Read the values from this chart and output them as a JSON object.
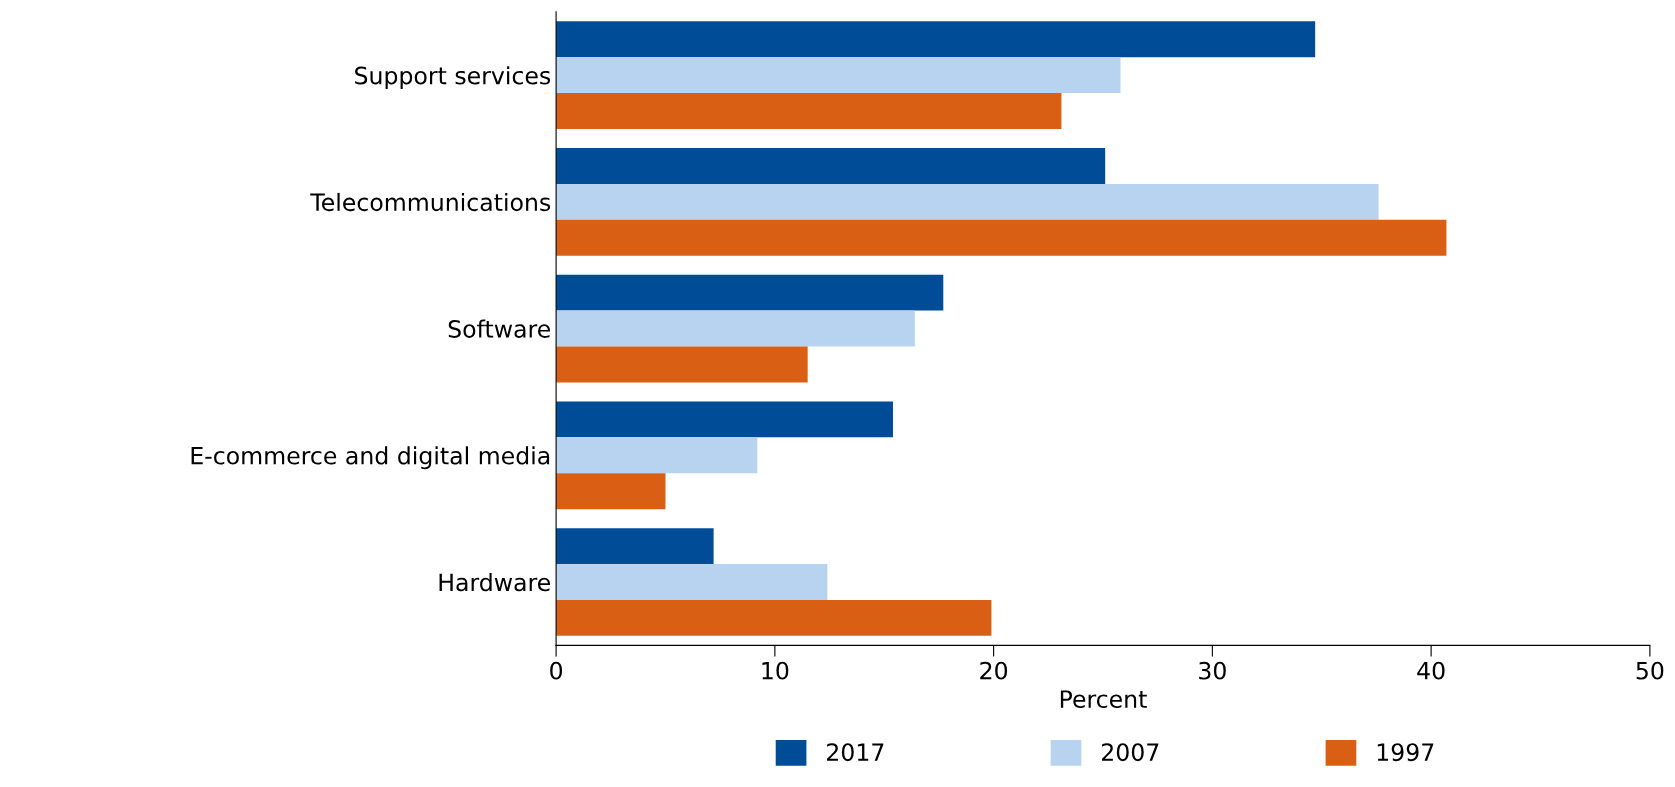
{
  "chart_data": {
    "type": "bar",
    "orientation": "horizontal",
    "xlabel": "Percent",
    "categories": [
      "Support services",
      "Telecommunications",
      "Software",
      "E-commerce and digital media",
      "Hardware"
    ],
    "series": [
      {
        "name": "2017",
        "color": "#004c97",
        "values": [
          34.7,
          25.1,
          17.7,
          15.4,
          7.2
        ]
      },
      {
        "name": "2007",
        "color": "#b8d3f0",
        "values": [
          25.8,
          37.6,
          16.4,
          9.2,
          12.4
        ]
      },
      {
        "name": "1997",
        "color": "#d95f14",
        "values": [
          23.1,
          40.7,
          11.5,
          5.0,
          19.9
        ]
      }
    ],
    "xlim": [
      0,
      50
    ],
    "xticks": [
      0,
      10,
      20,
      30,
      40,
      50
    ],
    "grid": false,
    "legend": "bottom"
  }
}
